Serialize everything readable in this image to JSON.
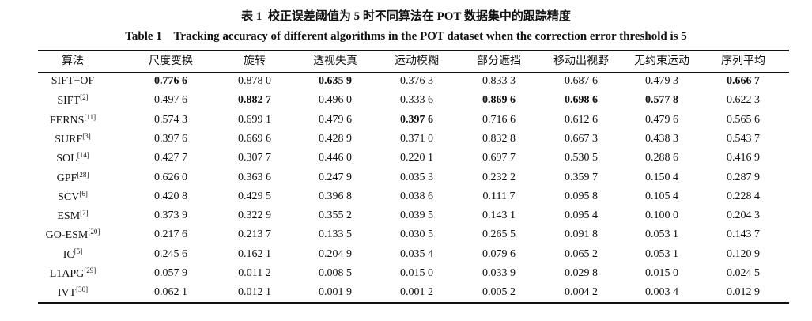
{
  "caption": {
    "zh_label": "表 1",
    "zh_title": "校正误差阈值为 5 时不同算法在 POT 数据集中的跟踪精度",
    "en_label": "Table 1",
    "en_title": "Tracking accuracy of different algorithms in the POT dataset when the correction error threshold is 5"
  },
  "table": {
    "header": [
      "算法",
      "尺度变换",
      "旋转",
      "透视失真",
      "运动模糊",
      "部分遮挡",
      "移动出视野",
      "无约束运动",
      "序列平均"
    ],
    "rows": [
      {
        "method": "SIFT+OF",
        "values": [
          "0.776 6",
          "0.878 0",
          "0.635 9",
          "0.376 3",
          "0.833 3",
          "0.687 6",
          "0.479 3",
          "0.666 7"
        ],
        "bold_columns": [
          0,
          2,
          7
        ]
      },
      {
        "method": "SIFT",
        "ref": "[2]",
        "values": [
          "0.497 6",
          "0.882 7",
          "0.496 0",
          "0.333 6",
          "0.869 6",
          "0.698 6",
          "0.577 8",
          "0.622 3"
        ],
        "bold_columns": [
          1,
          4,
          5,
          6
        ]
      },
      {
        "method": "FERNS",
        "ref": "[11]",
        "values": [
          "0.574 3",
          "0.699 1",
          "0.479 6",
          "0.397 6",
          "0.716 6",
          "0.612 6",
          "0.479 6",
          "0.565 6"
        ],
        "bold_columns": [
          3
        ]
      },
      {
        "method": "SURF",
        "ref": "[3]",
        "values": [
          "0.397 6",
          "0.669 6",
          "0.428 9",
          "0.371 0",
          "0.832 8",
          "0.667 3",
          "0.438 3",
          "0.543 7"
        ]
      },
      {
        "method": "SOL",
        "ref": "[14]",
        "values": [
          "0.427 7",
          "0.307 7",
          "0.446 0",
          "0.220 1",
          "0.697 7",
          "0.530 5",
          "0.288 6",
          "0.416 9"
        ]
      },
      {
        "method": "GPF",
        "ref": "[28]",
        "values": [
          "0.626 0",
          "0.363 6",
          "0.247 9",
          "0.035 3",
          "0.232 2",
          "0.359 7",
          "0.150 4",
          "0.287 9"
        ]
      },
      {
        "method": "SCV",
        "ref": "[6]",
        "values": [
          "0.420 8",
          "0.429 5",
          "0.396 8",
          "0.038 6",
          "0.111 7",
          "0.095 8",
          "0.105 4",
          "0.228 4"
        ]
      },
      {
        "method": "ESM",
        "ref": "[7]",
        "values": [
          "0.373 9",
          "0.322 9",
          "0.355 2",
          "0.039 5",
          "0.143 1",
          "0.095 4",
          "0.100 0",
          "0.204 3"
        ]
      },
      {
        "method": "GO-ESM",
        "ref": "[20]",
        "values": [
          "0.217 6",
          "0.213 7",
          "0.133 5",
          "0.030 5",
          "0.265 5",
          "0.091 8",
          "0.053 1",
          "0.143 7"
        ]
      },
      {
        "method": "IC",
        "ref": "[5]",
        "values": [
          "0.245 6",
          "0.162 1",
          "0.204 9",
          "0.035 4",
          "0.079 6",
          "0.065 2",
          "0.053 1",
          "0.120 9"
        ]
      },
      {
        "method": "L1APG",
        "ref": "[29]",
        "values": [
          "0.057 9",
          "0.011 2",
          "0.008 5",
          "0.015 0",
          "0.033 9",
          "0.029 8",
          "0.015 0",
          "0.024 5"
        ]
      },
      {
        "method": "IVT",
        "ref": "[30]",
        "values": [
          "0.062 1",
          "0.012 1",
          "0.001 9",
          "0.001 2",
          "0.005 2",
          "0.004 2",
          "0.003 4",
          "0.012 9"
        ]
      }
    ]
  }
}
